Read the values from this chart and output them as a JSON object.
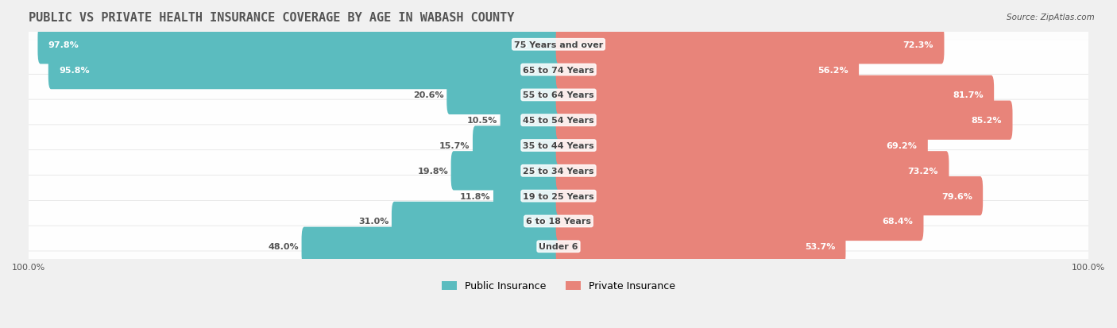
{
  "title": "PUBLIC VS PRIVATE HEALTH INSURANCE COVERAGE BY AGE IN WABASH COUNTY",
  "source": "Source: ZipAtlas.com",
  "categories": [
    "Under 6",
    "6 to 18 Years",
    "19 to 25 Years",
    "25 to 34 Years",
    "35 to 44 Years",
    "45 to 54 Years",
    "55 to 64 Years",
    "65 to 74 Years",
    "75 Years and over"
  ],
  "public_values": [
    48.0,
    31.0,
    11.8,
    19.8,
    15.7,
    10.5,
    20.6,
    95.8,
    97.8
  ],
  "private_values": [
    53.7,
    68.4,
    79.6,
    73.2,
    69.2,
    85.2,
    81.7,
    56.2,
    72.3
  ],
  "public_color": "#5bbcbf",
  "private_color": "#e8847a",
  "bg_color": "#f0f0f0",
  "bar_bg_color": "#e8e8e8",
  "title_color": "#555555",
  "label_color": "#555555",
  "bar_height": 0.55,
  "max_value": 100.0,
  "legend_public": "Public Insurance",
  "legend_private": "Private Insurance"
}
